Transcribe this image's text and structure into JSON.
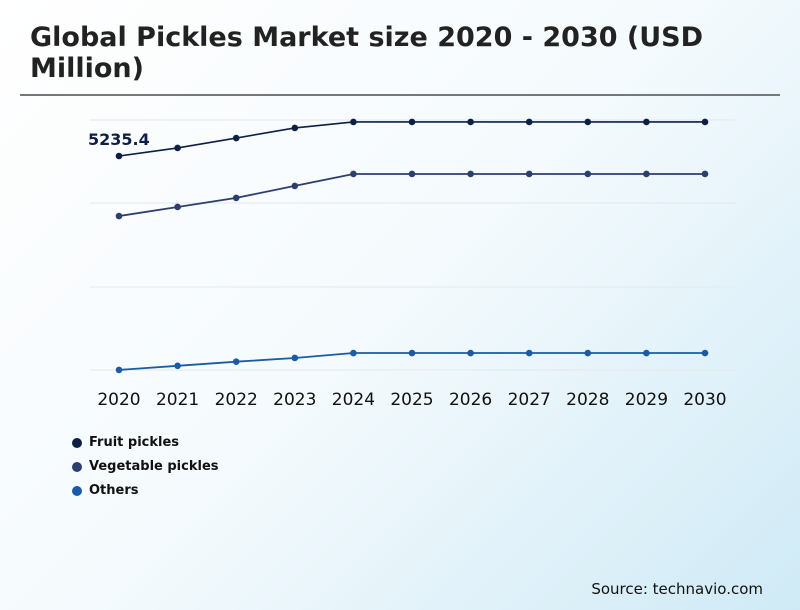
{
  "title": "Global Pickles Market size 2020 - 2030 (USD Million)",
  "source": "Source: technavio.com",
  "chart_data": {
    "type": "line",
    "title": "Global Pickles Market size 2020 - 2030 (USD Million)",
    "categories": [
      "2020",
      "2021",
      "2022",
      "2023",
      "2024",
      "2025",
      "2026",
      "2027",
      "2028",
      "2029",
      "2030"
    ],
    "series": [
      {
        "name": "Fruit pickles",
        "color": "#0d1f45",
        "values": [
          5235.4,
          5430,
          5670,
          5915,
          6060,
          6060,
          6060,
          6060,
          6060,
          6060,
          6060
        ]
      },
      {
        "name": "Vegetable pickles",
        "color": "#2c3e70",
        "values": [
          3780,
          4000,
          4220,
          4510,
          4800,
          4800,
          4800,
          4800,
          4800,
          4800,
          4800
        ]
      },
      {
        "name": "Others",
        "color": "#1a5ba6",
        "values": [
          50,
          150,
          250,
          340,
          460,
          460,
          460,
          460,
          460,
          460,
          460
        ]
      }
    ],
    "annotations": [
      {
        "series": "Fruit pickles",
        "x": "2020",
        "text": "5235.4"
      }
    ],
    "ylim": [
      0,
      6200
    ],
    "grid": true,
    "legend": "bottom-left"
  }
}
